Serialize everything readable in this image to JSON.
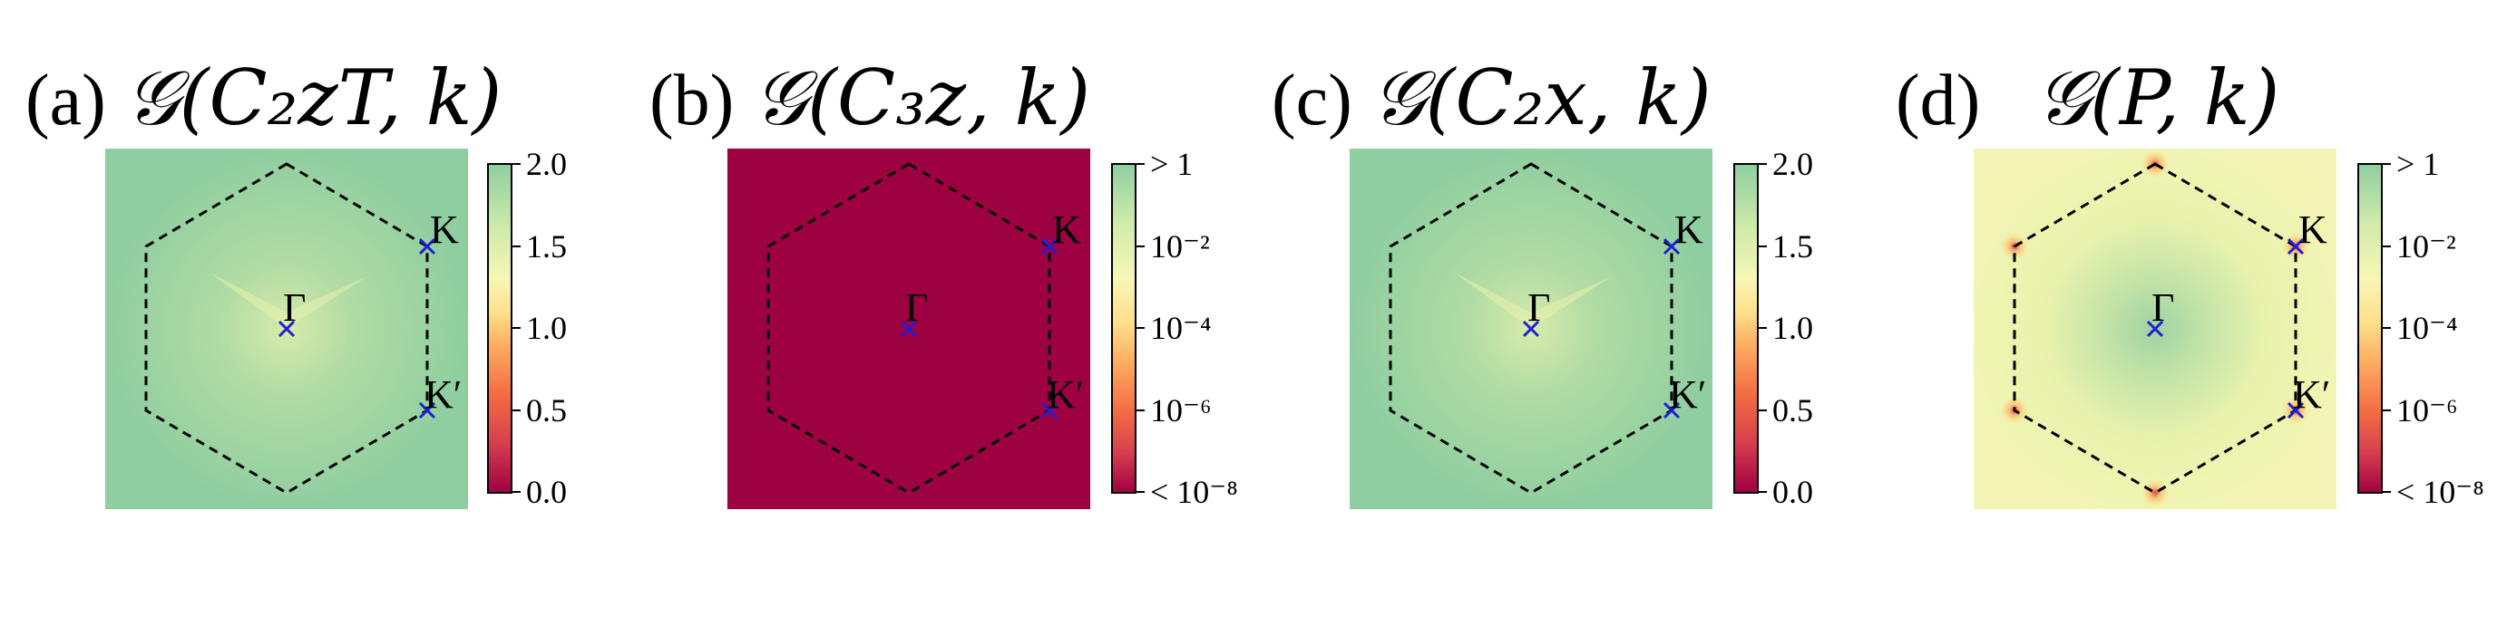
{
  "chart_data": [
    {
      "type": "heatmap",
      "panel_label": "(a)",
      "title": "𝒢(C₂zT, k)",
      "colorbar": {
        "scale": "linear",
        "range": [
          0.0,
          2.0
        ],
        "ticks": [
          "0.0",
          "0.5",
          "1.0",
          "1.5",
          "2.0"
        ]
      },
      "points": [
        {
          "label": "K",
          "value_note": "high-symmetry point"
        },
        {
          "label": "Γ",
          "value_note": "zone center"
        },
        {
          "label": "K′",
          "value_note": "high-symmetry point"
        }
      ],
      "field": "mostly ~1.6 with dips to ~1.0 around Γ"
    },
    {
      "type": "heatmap",
      "panel_label": "(b)",
      "title": "𝒢(C₃z, k)",
      "colorbar": {
        "scale": "log",
        "range": [
          "< 10⁻⁸",
          "> 1"
        ],
        "ticks": [
          "< 10⁻⁸",
          "10⁻⁶",
          "10⁻⁴",
          "10⁻²",
          "> 1"
        ]
      },
      "points": [
        {
          "label": "K"
        },
        {
          "label": "Γ"
        },
        {
          "label": "K′"
        }
      ],
      "field": "uniform below 10⁻⁸"
    },
    {
      "type": "heatmap",
      "panel_label": "(c)",
      "title": "𝒢(C₂x, k)",
      "colorbar": {
        "scale": "linear",
        "range": [
          0.0,
          2.0
        ],
        "ticks": [
          "0.0",
          "0.5",
          "1.0",
          "1.5",
          "2.0"
        ]
      },
      "points": [
        {
          "label": "K"
        },
        {
          "label": "Γ"
        },
        {
          "label": "K′"
        }
      ],
      "field": "mostly ~1.6 with dips to ~1.0 around Γ"
    },
    {
      "type": "heatmap",
      "panel_label": "(d)",
      "title": "𝒢(P, k)",
      "colorbar": {
        "scale": "log",
        "range": [
          "< 10⁻⁸",
          "> 1"
        ],
        "ticks": [
          "< 10⁻⁸",
          "10⁻⁶",
          "10⁻⁴",
          "10⁻²",
          "> 1"
        ]
      },
      "points": [
        {
          "label": "K"
        },
        {
          "label": "Γ"
        },
        {
          "label": "K′"
        }
      ],
      "field": "~10⁻² background, ~1 near Γ, minima at hexagon corners"
    }
  ],
  "colors": {
    "high": "#8fcea0",
    "mid": "#f8f6b6",
    "low": "#9e0142",
    "marker": "#1f1fd6",
    "boundary": "#000000"
  }
}
